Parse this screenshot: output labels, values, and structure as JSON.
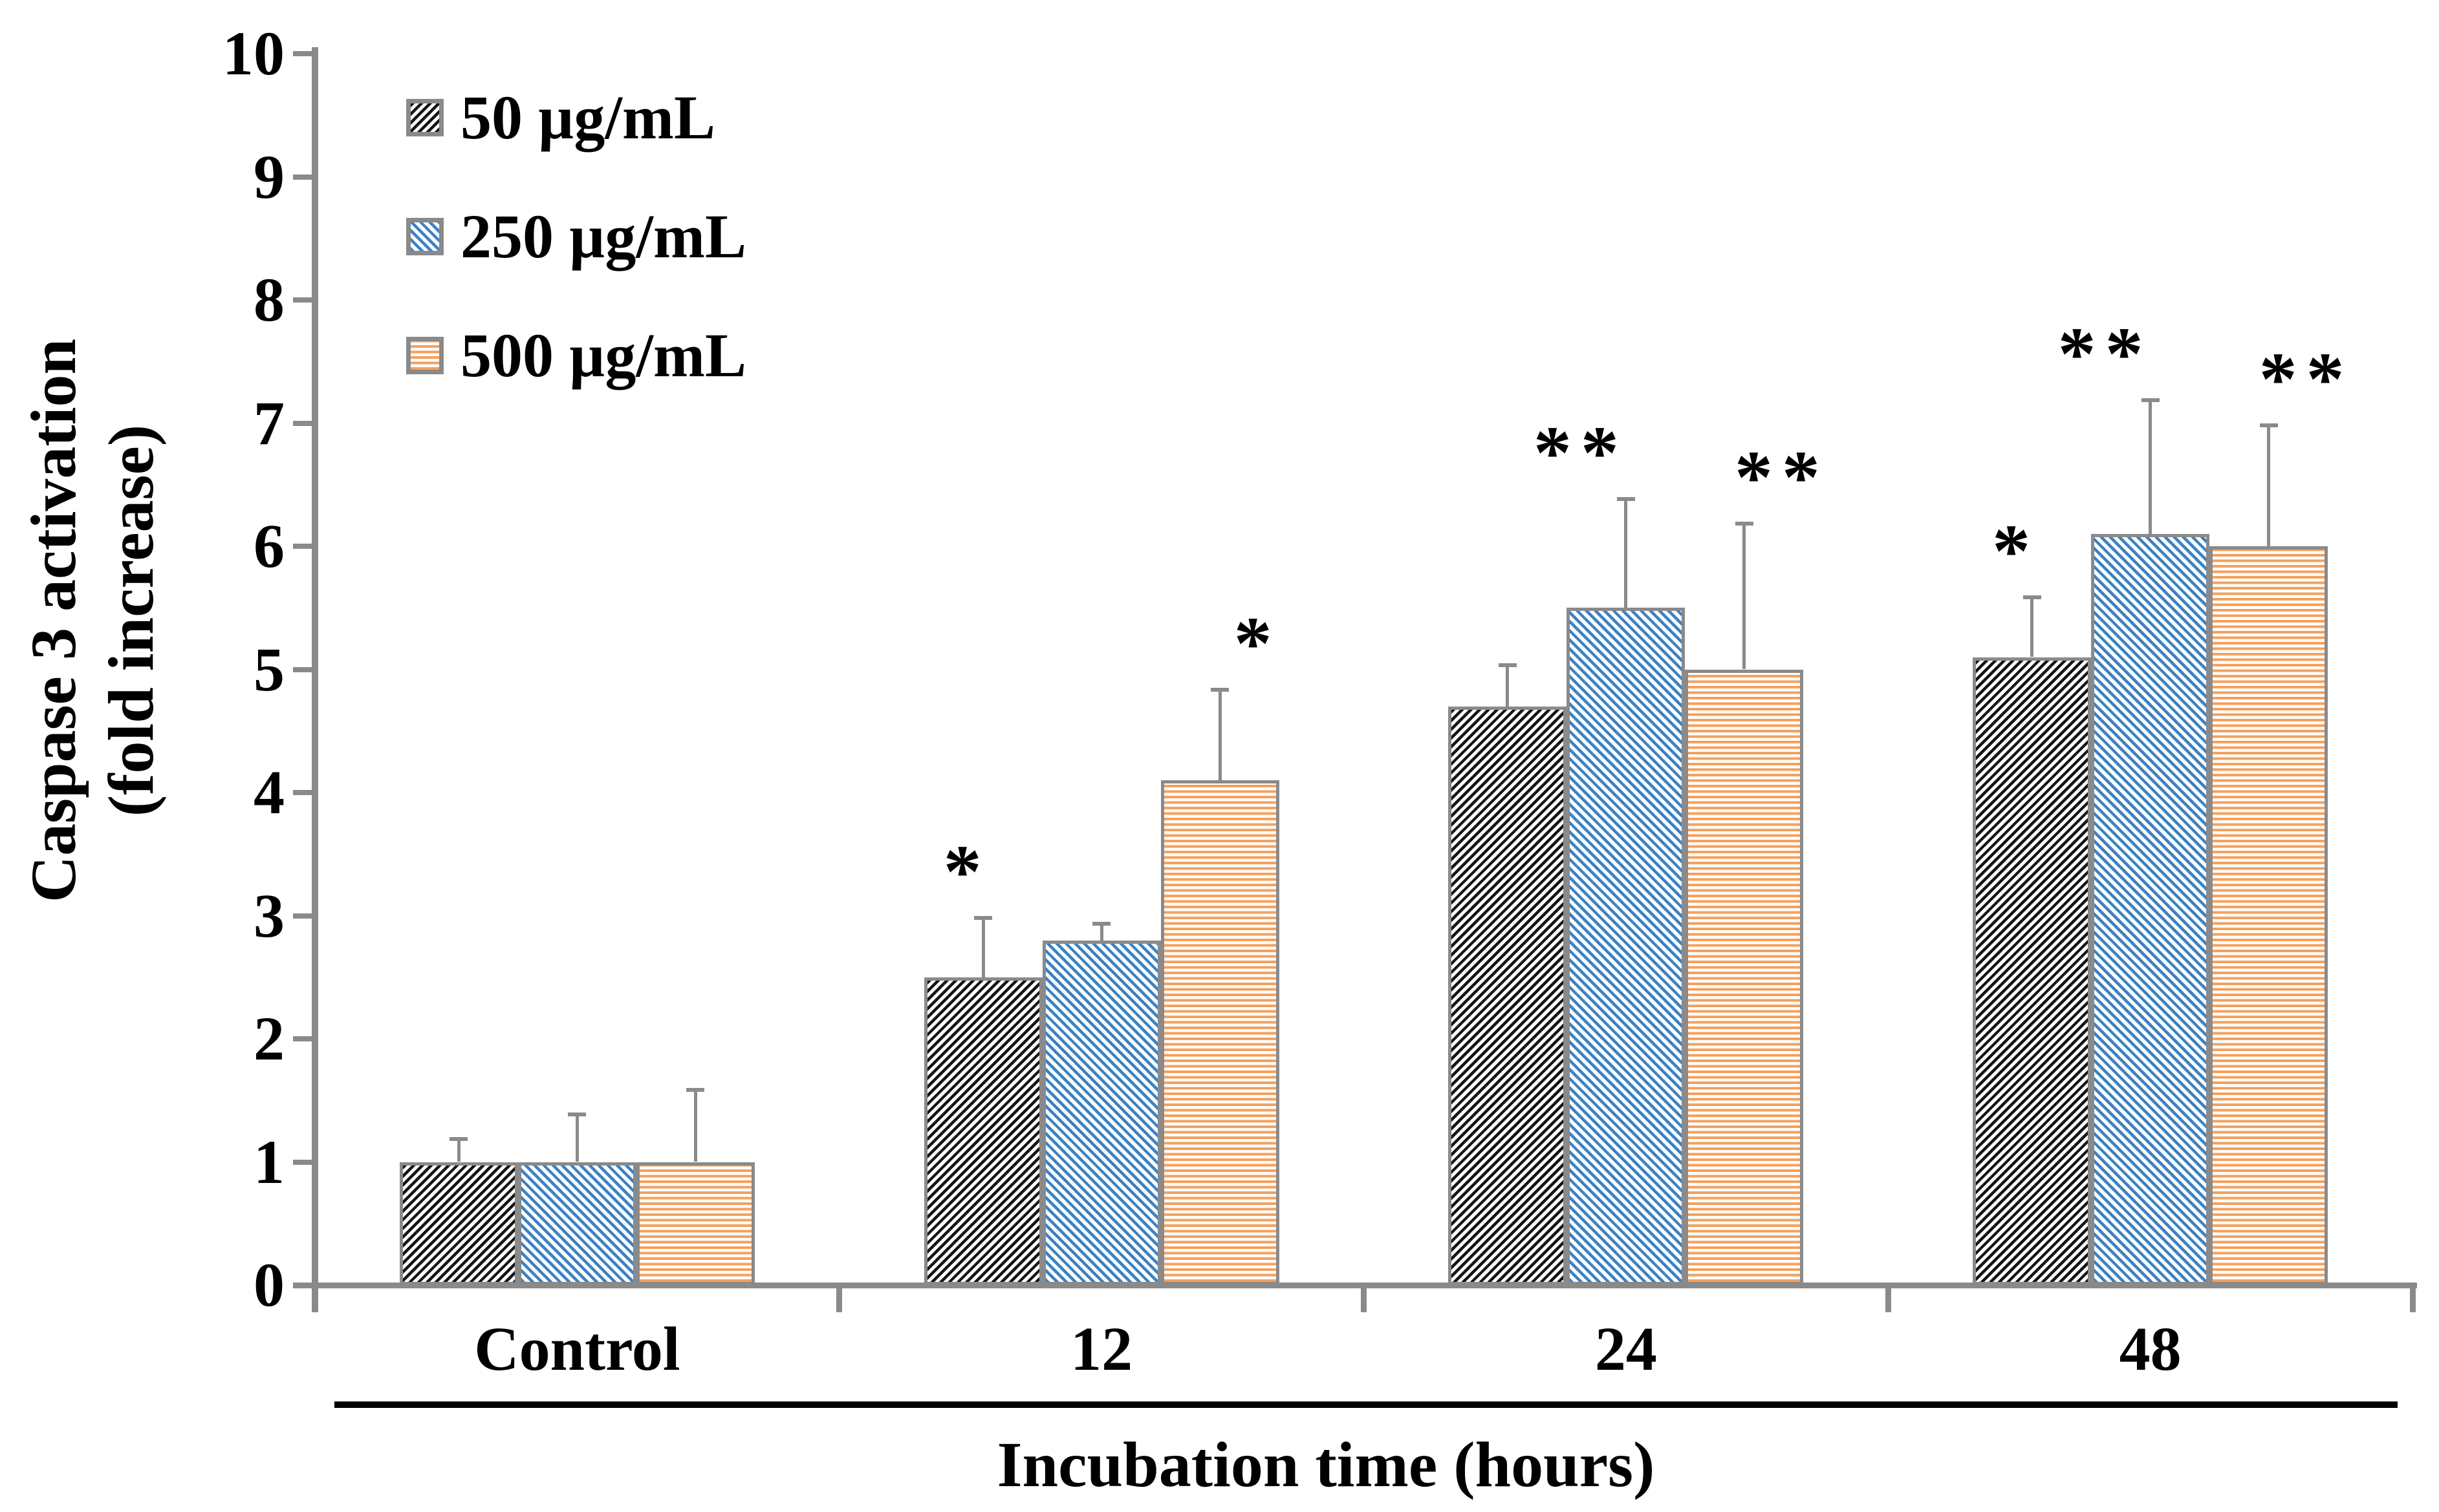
{
  "chart_data": {
    "type": "bar",
    "title": "",
    "xlabel": "Incubation time (hours)",
    "ylabel": "Caspase 3 activation (fold increase)",
    "ylabel_lines": [
      "Caspase 3 activation",
      "(fold increase)"
    ],
    "categories": [
      "Control",
      "12",
      "24",
      "48"
    ],
    "series": [
      {
        "name": "50 µg/mL",
        "pattern": "diagonal-up-black",
        "color": "#151515",
        "values": [
          1.0,
          2.5,
          4.7,
          5.1
        ],
        "errors_plus": [
          0.2,
          0.5,
          0.35,
          0.5
        ],
        "significance": [
          "",
          "*",
          "",
          "*"
        ]
      },
      {
        "name": "250 µg/mL",
        "pattern": "diagonal-down-blue",
        "color": "#3b82c4",
        "values": [
          1.0,
          2.8,
          5.5,
          6.1
        ],
        "errors_plus": [
          0.4,
          0.15,
          0.9,
          1.1
        ],
        "significance": [
          "",
          "",
          "**",
          "**"
        ]
      },
      {
        "name": "500 µg/mL",
        "pattern": "horizontal-orange",
        "color": "#f5a05c",
        "values": [
          1.0,
          4.1,
          5.0,
          6.0
        ],
        "errors_plus": [
          0.6,
          0.75,
          1.2,
          1.0
        ],
        "significance": [
          "",
          "*",
          "**",
          "**"
        ]
      }
    ],
    "ylim": [
      0,
      10
    ],
    "yticks": [
      0,
      1,
      2,
      3,
      4,
      5,
      6,
      7,
      8,
      9,
      10
    ],
    "grid": false,
    "legend_position": "top-left",
    "axis_color": "#8a8a8a",
    "error_bar_color": "#8a8a8a",
    "significance_color": "#000000"
  }
}
